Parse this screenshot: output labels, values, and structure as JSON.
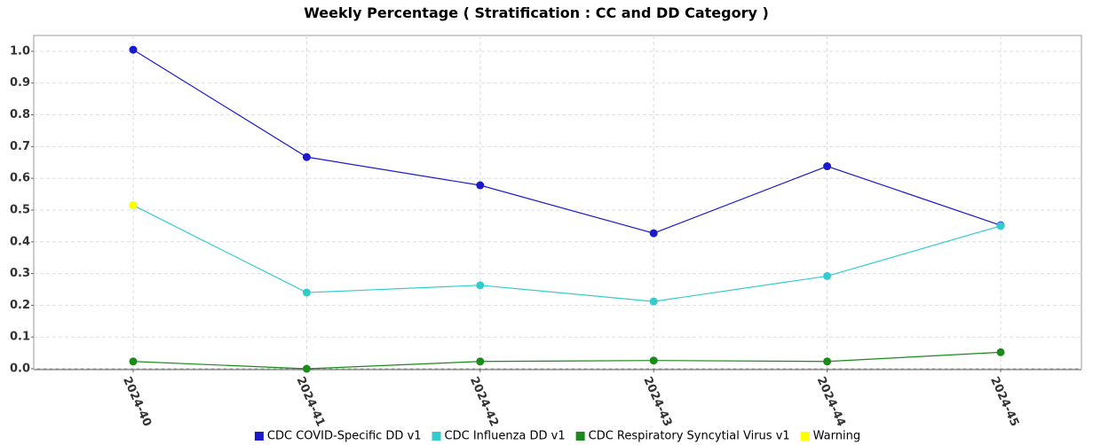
{
  "chart_data": {
    "type": "line",
    "title": "Weekly Percentage ( Stratification : CC and DD Category )",
    "categories": [
      "2024-40",
      "2024-41",
      "2024-42",
      "2024-43",
      "2024-44",
      "2024-45"
    ],
    "series": [
      {
        "name": "CDC COVID-Specific DD v1",
        "color": "#1a1acc",
        "values": [
          1.005,
          0.667,
          0.578,
          0.427,
          0.638,
          0.452
        ]
      },
      {
        "name": "CDC Influenza DD v1",
        "color": "#33cccc",
        "values": [
          0.515,
          0.24,
          0.263,
          0.212,
          0.292,
          0.45
        ]
      },
      {
        "name": "CDC Respiratory Syncytial Virus v1",
        "color": "#1a8a1a",
        "values": [
          0.023,
          0.0,
          0.023,
          0.026,
          0.023,
          0.052
        ]
      },
      {
        "name": "Warning",
        "color": "#ffff00",
        "values": [
          0.515,
          null,
          null,
          null,
          null,
          null
        ]
      }
    ],
    "ylim": [
      0,
      1.05
    ],
    "yticks": [
      {
        "value": 0,
        "label": "0.0"
      },
      0.1,
      0.2,
      0.3,
      0.4,
      0.5,
      0.6,
      0.7,
      0.8,
      0.9,
      {
        "value": 1,
        "label": "1.0"
      }
    ],
    "grid": true
  }
}
